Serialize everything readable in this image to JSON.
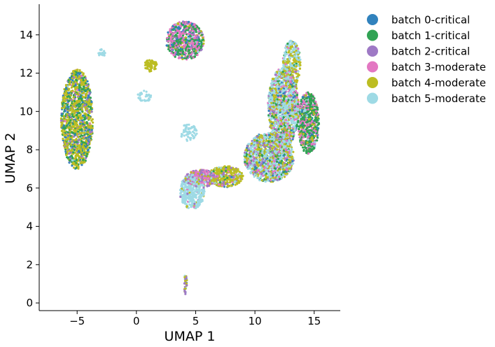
{
  "chart_data": {
    "type": "scatter",
    "title": "",
    "xlabel": "UMAP 1",
    "ylabel": "UMAP 2",
    "xlim": [
      -8.2,
      17.2
    ],
    "ylim": [
      -0.4,
      15.6
    ],
    "xticks": [
      -5,
      0,
      5,
      10,
      15
    ],
    "yticks": [
      0,
      2,
      4,
      6,
      8,
      10,
      12,
      14
    ],
    "grid": false,
    "legend_position": "outside-top-right",
    "series": [
      {
        "name": "batch 0-critical",
        "color": "#3182bd"
      },
      {
        "name": "batch 1-critical",
        "color": "#31a354"
      },
      {
        "name": "batch 2-critical",
        "color": "#9e79c5"
      },
      {
        "name": "batch 3-moderate",
        "color": "#e377c2"
      },
      {
        "name": "batch 4-moderate",
        "color": "#bcbd22"
      },
      {
        "name": "batch 5-moderate",
        "color": "#9edae5"
      }
    ],
    "clusters": [
      {
        "label": "left-ellipse",
        "cx": -5,
        "cy": 9.6,
        "rx": 1.35,
        "ry": 2.6,
        "n": 1300,
        "mix": [
          0.1,
          0.24,
          0.12,
          0.02,
          0.5,
          0.02
        ]
      },
      {
        "label": "top-blob",
        "cx": 4.1,
        "cy": 13.7,
        "rx": 1.6,
        "ry": 1.0,
        "n": 650,
        "mix": [
          0.12,
          0.38,
          0.1,
          0.32,
          0.06,
          0.02
        ]
      },
      {
        "label": "small-yellow",
        "cx": 1.2,
        "cy": 12.4,
        "rx": 0.55,
        "ry": 0.32,
        "n": 60,
        "mix": [
          0,
          0,
          0,
          0,
          1,
          0
        ]
      },
      {
        "label": "tiny-cyan-top",
        "cx": -2.9,
        "cy": 13.05,
        "rx": 0.3,
        "ry": 0.2,
        "n": 20,
        "mix": [
          0,
          0,
          0,
          0,
          0,
          1
        ]
      },
      {
        "label": "small-cyan",
        "cx": 0.7,
        "cy": 10.8,
        "rx": 0.6,
        "ry": 0.28,
        "n": 35,
        "mix": [
          0,
          0,
          0,
          0,
          0,
          1
        ]
      },
      {
        "label": "cyan-middle",
        "cx": 4.4,
        "cy": 8.9,
        "rx": 0.7,
        "ry": 0.45,
        "n": 60,
        "mix": [
          0,
          0,
          0,
          0,
          0,
          1
        ]
      },
      {
        "label": "cyan-low",
        "cx": 4.7,
        "cy": 5.8,
        "rx": 1.05,
        "ry": 0.9,
        "n": 400,
        "mix": [
          0,
          0,
          0.02,
          0.02,
          0.04,
          0.92
        ]
      },
      {
        "label": "arm-pink-purple",
        "cx": 5.5,
        "cy": 6.5,
        "rx": 1.4,
        "ry": 0.45,
        "n": 260,
        "mix": [
          0.02,
          0.02,
          0.35,
          0.38,
          0.18,
          0.05
        ]
      },
      {
        "label": "arm-yellow",
        "cx": 7.5,
        "cy": 6.6,
        "rx": 1.5,
        "ry": 0.55,
        "n": 380,
        "mix": [
          0.02,
          0.04,
          0.1,
          0.05,
          0.69,
          0.1
        ]
      },
      {
        "label": "right-lower",
        "cx": 11.2,
        "cy": 7.6,
        "rx": 2.1,
        "ry": 1.3,
        "n": 1400,
        "mix": [
          0.04,
          0.1,
          0.12,
          0.08,
          0.26,
          0.4
        ]
      },
      {
        "label": "right-mid",
        "cx": 12.4,
        "cy": 10.2,
        "rx": 1.3,
        "ry": 2.1,
        "n": 1300,
        "mix": [
          0.04,
          0.1,
          0.06,
          0.1,
          0.22,
          0.48
        ]
      },
      {
        "label": "right-edge",
        "cx": 14.5,
        "cy": 9.4,
        "rx": 0.9,
        "ry": 1.6,
        "n": 650,
        "mix": [
          0.06,
          0.5,
          0.02,
          0.3,
          0.07,
          0.05
        ]
      },
      {
        "label": "right-top",
        "cx": 13.1,
        "cy": 12.5,
        "rx": 0.75,
        "ry": 1.2,
        "n": 320,
        "mix": [
          0.02,
          0.05,
          0.03,
          0.03,
          0.4,
          0.47
        ]
      },
      {
        "label": "bottom-thin",
        "cx": 4.15,
        "cy": 0.95,
        "rx": 0.12,
        "ry": 0.55,
        "n": 35,
        "mix": [
          0.05,
          0,
          0.45,
          0,
          0.4,
          0.1
        ]
      }
    ]
  }
}
